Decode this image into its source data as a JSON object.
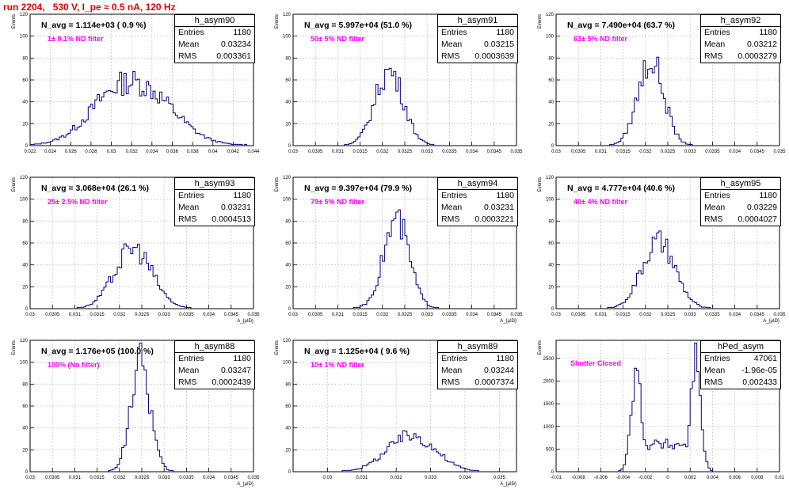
{
  "title": "run 2204,   530 V, I_pe ≈ 0.5 nA, 120 Hz",
  "colors": {
    "title": "#e00000",
    "histogram": "#000080",
    "grid": "#c8c8c8",
    "annotation": "#ff00ff"
  },
  "chart_data": [
    {
      "type": "bar",
      "name": "h_asym90",
      "label": "N_avg = 1.114e+03 ( 0.9 %)",
      "annotation": "1± 0.1% ND filter",
      "stats": {
        "entries_label": "Entries",
        "entries": "1180",
        "mean_label": "Mean",
        "mean": "0.03234",
        "rms_label": "RMS",
        "rms": "0.003361"
      },
      "ylabel": "Events",
      "xlabel": "",
      "xlim": [
        0.022,
        0.044
      ],
      "ylim": [
        0,
        120
      ],
      "xticks": [
        "0.022",
        "0.024",
        "0.026",
        "0.028",
        "0.03",
        "0.032",
        "0.034",
        "0.036",
        "0.038",
        "0.04",
        "0.042",
        "0.044"
      ],
      "yticks": [
        "0",
        "20",
        "40",
        "60",
        "80",
        "100",
        "120"
      ],
      "shape": {
        "peaks": [
          [
            0.03,
            27,
            0.0025
          ],
          [
            0.034,
            27,
            0.0027
          ],
          [
            0.0322,
            18,
            0.004
          ]
        ]
      }
    },
    {
      "type": "bar",
      "name": "h_asym91",
      "label": "N_avg = 5.997e+04 (51.0 %)",
      "annotation": "50± 5% ND filter",
      "stats": {
        "entries_label": "Entries",
        "entries": "1180",
        "mean_label": "Mean",
        "mean": "0.03215",
        "rms_label": "RMS",
        "rms": "0.0003639"
      },
      "ylabel": "Events",
      "xlabel": "",
      "xlim": [
        0.03,
        0.035
      ],
      "ylim": [
        0,
        120
      ],
      "xticks": [
        "0.03",
        "0.0305",
        "0.031",
        "0.0315",
        "0.032",
        "0.0325",
        "0.033",
        "0.0335",
        "0.034",
        "0.0345",
        "0.035"
      ],
      "yticks": [
        "0",
        "20",
        "40",
        "60",
        "80",
        "100",
        "120"
      ],
      "shape": {
        "peaks": [
          [
            0.03215,
            68,
            0.00032
          ]
        ]
      }
    },
    {
      "type": "bar",
      "name": "h_asym92",
      "label": "N_avg = 7.490e+04 (63.7 %)",
      "annotation": "63± 5% ND filter",
      "stats": {
        "entries_label": "Entries",
        "entries": "1180",
        "mean_label": "Mean",
        "mean": "0.03212",
        "rms_label": "RMS",
        "rms": "0.0003279"
      },
      "ylabel": "Events",
      "xlabel": "",
      "xlim": [
        0.03,
        0.035
      ],
      "ylim": [
        0,
        120
      ],
      "xticks": [
        "0.03",
        "0.0305",
        "0.031",
        "0.0315",
        "0.032",
        "0.0325",
        "0.033",
        "0.0335",
        "0.034",
        "0.0345",
        "0.035"
      ],
      "yticks": [
        "0",
        "20",
        "40",
        "60",
        "80",
        "100",
        "120"
      ],
      "shape": {
        "peaks": [
          [
            0.03212,
            78,
            0.00029
          ]
        ]
      }
    },
    {
      "type": "bar",
      "name": "h_asym93",
      "label": "N_avg = 3.068e+04 (26.1 %)",
      "annotation": "25± 2.5% ND filter",
      "stats": {
        "entries_label": "Entries",
        "entries": "1180",
        "mean_label": "Mean",
        "mean": "0.03231",
        "rms_label": "RMS",
        "rms": "0.0004513"
      },
      "ylabel": "Events",
      "xlabel": "A_{μID}",
      "xlim": [
        0.03,
        0.035
      ],
      "ylim": [
        0,
        120
      ],
      "xticks": [
        "0.03",
        "0.0305",
        "0.031",
        "0.0315",
        "0.032",
        "0.0325",
        "0.033",
        "0.0335",
        "0.034",
        "0.0345",
        "0.035"
      ],
      "yticks": [
        "0",
        "20",
        "40",
        "60",
        "80",
        "100",
        "120"
      ],
      "shape": {
        "peaks": [
          [
            0.03231,
            55,
            0.00042
          ]
        ]
      }
    },
    {
      "type": "bar",
      "name": "h_asym94",
      "label": "N_avg = 9.397e+04 (79.9 %)",
      "annotation": "79± 5% ND filter",
      "stats": {
        "entries_label": "Entries",
        "entries": "1180",
        "mean_label": "Mean",
        "mean": "0.03231",
        "rms_label": "RMS",
        "rms": "0.0003221"
      },
      "ylabel": "Events",
      "xlabel": "A_{μID}",
      "xlim": [
        0.03,
        0.035
      ],
      "ylim": [
        0,
        120
      ],
      "xticks": [
        "0.03",
        "0.0305",
        "0.031",
        "0.0315",
        "0.032",
        "0.0325",
        "0.033",
        "0.0335",
        "0.034",
        "0.0345",
        "0.035"
      ],
      "yticks": [
        "0",
        "20",
        "40",
        "60",
        "80",
        "100",
        "120"
      ],
      "shape": {
        "peaks": [
          [
            0.03231,
            80,
            0.00029
          ]
        ]
      }
    },
    {
      "type": "bar",
      "name": "h_asym95",
      "label": "N_avg = 4.777e+04 (40.6 %)",
      "annotation": "40± 4% ND filter",
      "stats": {
        "entries_label": "Entries",
        "entries": "1180",
        "mean_label": "Mean",
        "mean": "0.03229",
        "rms_label": "RMS",
        "rms": "0.0004027"
      },
      "ylabel": "Events",
      "xlabel": "A_{μID}",
      "xlim": [
        0.03,
        0.035
      ],
      "ylim": [
        0,
        120
      ],
      "xticks": [
        "0.03",
        "0.0305",
        "0.031",
        "0.0315",
        "0.032",
        "0.0325",
        "0.033",
        "0.0335",
        "0.034",
        "0.0345",
        "0.035"
      ],
      "yticks": [
        "0",
        "20",
        "40",
        "60",
        "80",
        "100",
        "120"
      ],
      "shape": {
        "peaks": [
          [
            0.03229,
            60,
            0.00037
          ]
        ]
      }
    },
    {
      "type": "bar",
      "name": "h_asym88",
      "label": "N_avg = 1.176e+05 (100.0 %)",
      "annotation": "100% (No filter)",
      "stats": {
        "entries_label": "Entries",
        "entries": "1180",
        "mean_label": "Mean",
        "mean": "0.03247",
        "rms_label": "RMS",
        "rms": "0.0002439"
      },
      "ylabel": "Events",
      "xlabel": "A_{μID}",
      "xlim": [
        0.03,
        0.035
      ],
      "ylim": [
        0,
        120
      ],
      "xticks": [
        "0.03",
        "0.0305",
        "0.031",
        "0.0315",
        "0.032",
        "0.0325",
        "0.033",
        "0.0335",
        "0.034",
        "0.0345",
        "0.035"
      ],
      "yticks": [
        "0",
        "20",
        "40",
        "60",
        "80",
        "100",
        "120"
      ],
      "shape": {
        "peaks": [
          [
            0.03247,
            100,
            0.00022
          ]
        ]
      }
    },
    {
      "type": "bar",
      "name": "h_asym89",
      "label": "N_avg = 1.125e+04 ( 9.6 %)",
      "annotation": "10± 1% ND filter",
      "stats": {
        "entries_label": "Entries",
        "entries": "1180",
        "mean_label": "Mean",
        "mean": "0.03244",
        "rms_label": "RMS",
        "rms": "0.0007374"
      },
      "ylabel": "Events",
      "xlabel": "A_{μID}",
      "xlim": [
        0.029,
        0.0355
      ],
      "ylim": [
        0,
        120
      ],
      "xticks": [
        "0.03",
        "0.031",
        "0.032",
        "0.033",
        "0.034",
        "0.035"
      ],
      "xtick_values": [
        0.03,
        0.031,
        0.032,
        0.033,
        0.034,
        0.035
      ],
      "yticks": [
        "0",
        "20",
        "40",
        "60",
        "80",
        "100",
        "120"
      ],
      "shape": {
        "peaks": [
          [
            0.03244,
            33,
            0.0007
          ]
        ]
      }
    },
    {
      "type": "bar",
      "name": "hPed_asym",
      "label": "",
      "annotation": "Shutter Closed",
      "stats": {
        "entries_label": "Entries",
        "entries": "47061",
        "mean_label": "Mean",
        "mean": "-1.96e-05",
        "rms_label": "RMS",
        "rms": "0.002433"
      },
      "ylabel": "Events",
      "xlabel": "",
      "xlim": [
        -0.01,
        0.01
      ],
      "ylim": [
        0,
        2900
      ],
      "xticks": [
        "-0.01",
        "-0.008",
        "-0.006",
        "-0.004",
        "-0.002",
        "0",
        "0.002",
        "0.004",
        "0.006",
        "0.008",
        "0.01"
      ],
      "yticks": [
        "0",
        "500",
        "1000",
        "1500",
        "2000",
        "2500"
      ],
      "shape": {
        "peaks": [
          [
            -0.0028,
            2100,
            0.0005
          ],
          [
            0.0025,
            2550,
            0.00045
          ]
        ],
        "baseline": 600,
        "baseline_range": [
          -0.0025,
          0.0022
        ]
      }
    }
  ]
}
